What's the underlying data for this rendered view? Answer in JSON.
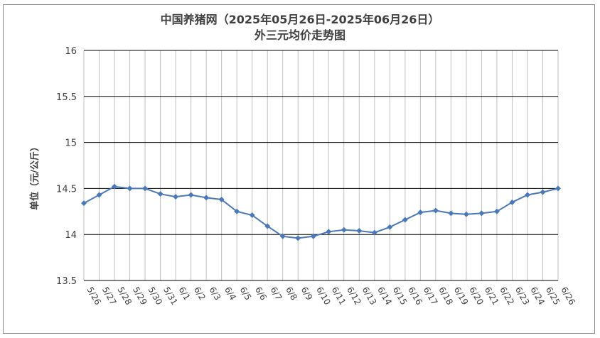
{
  "chart_data": {
    "type": "line",
    "title": "中国养猪网（2025年05月26日-2025年06月26日）",
    "subtitle": "外三元均价走势图",
    "ylabel": "单位（元/公斤）",
    "xlabel": "",
    "ylim": [
      13.5,
      16
    ],
    "yticks": [
      "13.5",
      "14",
      "14.5",
      "15",
      "15.5",
      "16"
    ],
    "categories": [
      "5/26",
      "5/27",
      "5/28",
      "5/29",
      "5/30",
      "5/31",
      "6/1",
      "6/2",
      "6/3",
      "6/4",
      "6/5",
      "6/6",
      "6/7",
      "6/8",
      "6/9",
      "6/10",
      "6/11",
      "6/12",
      "6/13",
      "6/14",
      "6/15",
      "6/16",
      "6/17",
      "6/18",
      "6/19",
      "6/20",
      "6/21",
      "6/22",
      "6/23",
      "6/24",
      "6/25",
      "6/26"
    ],
    "series": [
      {
        "values": [
          14.34,
          14.43,
          14.52,
          14.5,
          14.5,
          14.44,
          14.41,
          14.43,
          14.4,
          14.38,
          14.25,
          14.21,
          14.09,
          13.98,
          13.96,
          13.98,
          14.03,
          14.05,
          14.04,
          14.02,
          14.08,
          14.16,
          14.24,
          14.26,
          14.23,
          14.22,
          14.23,
          14.25,
          14.35,
          14.43,
          14.46,
          14.5
        ],
        "color": "#4a78b8"
      }
    ],
    "grid": true,
    "legend": "none"
  }
}
